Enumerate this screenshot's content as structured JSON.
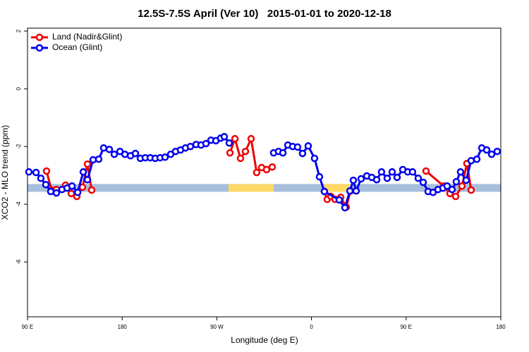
{
  "chart_data": {
    "type": "line",
    "title": "12.5S-7.5S April (Ver 10)   2015-01-01 to 2020-12-18",
    "xlabel": "Longitude (deg E)",
    "ylabel": "XCO2 - MLO trend (ppm)",
    "xlim": [
      90,
      540
    ],
    "xticks": [
      {
        "value": 90,
        "label": "90 E"
      },
      180,
      {
        "value": 270,
        "label": "90 W"
      },
      {
        "value": 360,
        "label": "0"
      },
      {
        "value": 450,
        "label": "90 E"
      },
      {
        "value": 540,
        "label": "180"
      }
    ],
    "ylim": [
      -7.9,
      2.1
    ],
    "yticks": [
      2,
      0,
      -2,
      -4,
      -6
    ],
    "legend": "top-left",
    "band": {
      "ylim": [
        -3.57,
        -3.3
      ],
      "color": "#a7bfdd",
      "highlights": [
        [
          281,
          324
        ],
        [
          372,
          397
        ]
      ],
      "highlight_color": "#ffd966"
    },
    "series": [
      {
        "name": "Land (Nadir&Glint)",
        "color": "#ee0000",
        "x": [
          108.1,
          112.8,
          117.5,
          126.2,
          131.6,
          136.9,
          142.3,
          147.0,
          151.0,
          null,
          282.5,
          287.2,
          292.5,
          297.2,
          302.6,
          307.9,
          312.6,
          317.3,
          322.7,
          null,
          372.3,
          375.0,
          378.4,
          382.4,
          387.8,
          393.1,
          397.1,
          null,
          468.9,
          485.7,
          491.7,
          497.1,
          503.1,
          507.8,
          511.8
        ],
        "values": [
          -2.85,
          -3.51,
          -3.49,
          -3.34,
          -3.63,
          -3.73,
          -3.41,
          -2.61,
          -3.51,
          null,
          -2.22,
          -1.73,
          -2.41,
          -2.17,
          -1.73,
          -2.9,
          -2.73,
          -2.8,
          -2.71,
          null,
          -3.56,
          -3.83,
          -3.73,
          -3.83,
          -3.76,
          -4.1,
          -3.54,
          null,
          -2.85,
          -3.37,
          -3.63,
          -3.73,
          -3.37,
          -2.59,
          -3.51
        ]
      },
      {
        "name": "Ocean (Glint)",
        "color": "#0000ee",
        "x": [
          91.3,
          98.1,
          102.7,
          107.4,
          112.1,
          117.5,
          122.8,
          127.6,
          132.3,
          137.7,
          143.0,
          147.0,
          152.4,
          157.7,
          162.4,
          167.8,
          172.5,
          177.9,
          182.6,
          187.9,
          192.6,
          197.3,
          202.0,
          206.7,
          211.4,
          216.1,
          220.8,
          226.1,
          230.8,
          235.5,
          240.2,
          244.9,
          250.3,
          255.0,
          259.7,
          264.4,
          269.1,
          273.7,
          277.1,
          281.8,
          null,
          324.0,
          328.7,
          332.8,
          337.5,
          342.1,
          346.8,
          351.5,
          356.9,
          362.9,
          367.6,
          372.3,
          386.4,
          391.8,
          396.5,
          399.8,
          402.5,
          407.2,
          412.6,
          417.3,
          422.0,
          426.6,
          432.0,
          436.7,
          441.4,
          446.8,
          451.5,
          456.1,
          461.5,
          466.2,
          470.9,
          475.6,
          480.3,
          485.0,
          489.0,
          493.7,
          497.7,
          501.7,
          507.1,
          511.8,
          517.2,
          521.9,
          526.6,
          531.3,
          536.6
        ],
        "values": [
          -2.88,
          -2.9,
          -3.1,
          -3.32,
          -3.56,
          -3.61,
          -3.49,
          -3.44,
          -3.37,
          -3.59,
          -2.88,
          -3.15,
          -2.46,
          -2.44,
          -2.05,
          -2.1,
          -2.27,
          -2.17,
          -2.27,
          -2.32,
          -2.24,
          -2.41,
          -2.39,
          -2.39,
          -2.41,
          -2.39,
          -2.37,
          -2.27,
          -2.17,
          -2.12,
          -2.05,
          -2.0,
          -1.93,
          -1.95,
          -1.9,
          -1.78,
          -1.8,
          -1.71,
          -1.66,
          -1.88,
          null,
          -2.22,
          -2.17,
          -2.22,
          -1.95,
          -2.0,
          -2.02,
          -2.24,
          -1.98,
          -2.41,
          -3.05,
          -3.56,
          -3.85,
          -4.12,
          -3.54,
          -3.17,
          -3.54,
          -3.12,
          -3.02,
          -3.07,
          -3.15,
          -2.88,
          -3.1,
          -2.88,
          -3.07,
          -2.8,
          -2.88,
          -2.88,
          -3.1,
          -3.24,
          -3.56,
          -3.59,
          -3.49,
          -3.44,
          -3.37,
          -3.49,
          -3.22,
          -2.88,
          -3.17,
          -2.49,
          -2.44,
          -2.05,
          -2.12,
          -2.27,
          -2.17
        ]
      }
    ]
  }
}
